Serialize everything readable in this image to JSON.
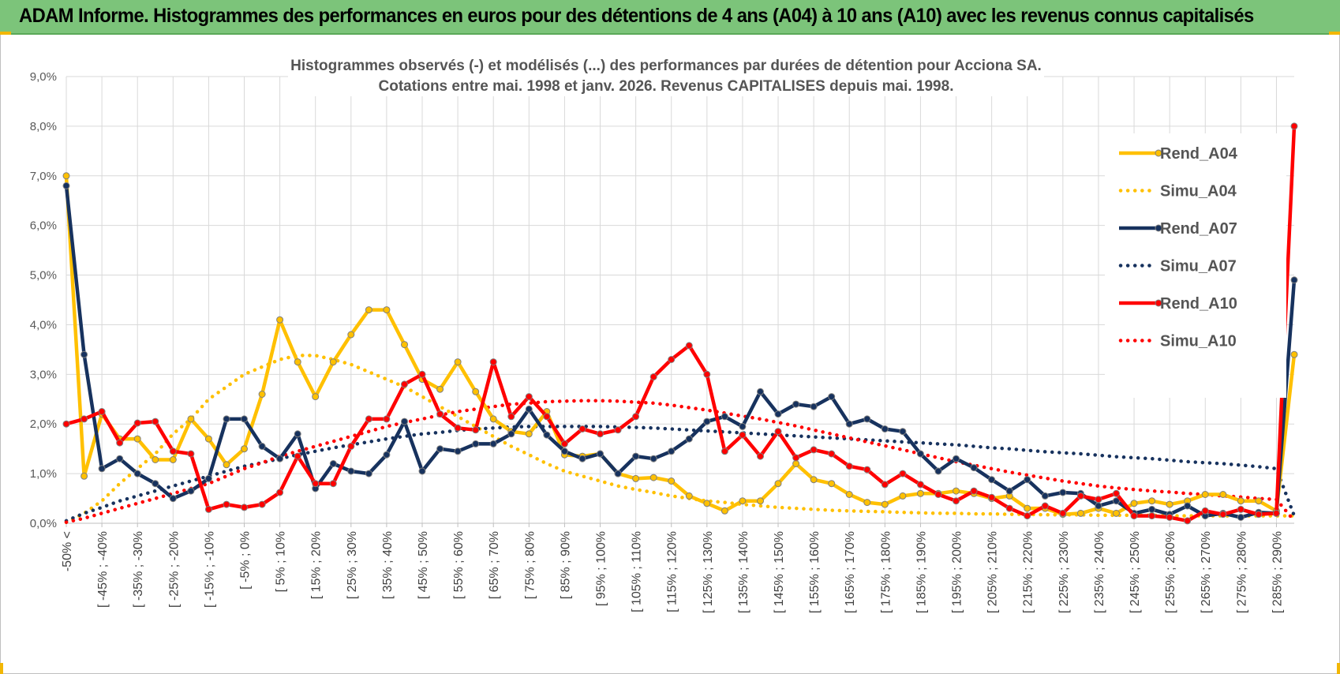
{
  "header": {
    "title": "ADAM Informe. Histogrammes des performances en euros pour des détentions de 4 ans (A04) à 10 ans (A10) avec les revenus connus capitalisés"
  },
  "colors": {
    "banner": "#7cc47a",
    "A04": "#ffc000",
    "A07": "#17325e",
    "A10": "#ff0000",
    "grid": "#d9d9d9"
  },
  "chart_data": {
    "type": "line",
    "title": "Histogrammes observés (-) et modélisés (...) des performances par durées de détention pour Acciona SA.",
    "subtitle": "Cotations entre mai. 1998 et janv. 2026. Revenus CAPITALISES depuis mai. 1998.",
    "ylim": [
      0,
      9
    ],
    "yticks": [
      "0,0%",
      "1,0%",
      "2,0%",
      "3,0%",
      "4,0%",
      "5,0%",
      "6,0%",
      "7,0%",
      "8,0%",
      "9,0%"
    ],
    "grid": true,
    "legend_position": "top-right",
    "x_labels": [
      "-50% <",
      "[ -45% ; -40%",
      "[ -35% ; -30%",
      "[ -25% ; -20%",
      "[ -15% ; -10%",
      "[ -5% ; 0%",
      "[ 5% ; 10%",
      "[ 15% ; 20%",
      "[ 25% ; 30%",
      "[ 35% ; 40%",
      "[ 45% ; 50%",
      "[ 55% ; 60%",
      "[ 65% ; 70%",
      "[ 75% ; 80%",
      "[ 85% ; 90%",
      "[ 95% ; 100%",
      "[ 105% ; 110%",
      "[ 115% ; 120%",
      "[ 125% ; 130%",
      "[ 135% ; 140%",
      "[ 145% ; 150%",
      "[ 155% ; 160%",
      "[ 165% ; 170%",
      "[ 175% ; 180%",
      "[ 185% ; 190%",
      "[ 195% ; 200%",
      "[ 205% ; 210%",
      "[ 215% ; 220%",
      "[ 225% ; 230%",
      "[ 235% ; 240%",
      "[ 245% ; 250%",
      "[ 255% ; 260%",
      "[ 265% ; 270%",
      "[ 275% ; 280%",
      "[ 285% ; 290%"
    ],
    "series": [
      {
        "name": "Rend_A04",
        "style": "solid",
        "color": "#ffc000",
        "values": [
          7.0,
          0.95,
          2.2,
          1.7,
          1.7,
          1.28,
          1.28,
          2.1,
          1.7,
          1.18,
          1.5,
          2.6,
          4.1,
          3.25,
          2.55,
          3.25,
          3.8,
          4.3,
          4.3,
          3.6,
          2.9,
          2.7,
          3.25,
          2.65,
          2.1,
          1.85,
          1.8,
          2.25,
          1.38,
          1.35,
          1.4,
          1.0,
          0.9,
          0.92,
          0.85,
          0.55,
          0.4,
          0.25,
          0.45,
          0.45,
          0.8,
          1.2,
          0.88,
          0.8,
          0.58,
          0.42,
          0.38,
          0.55,
          0.6,
          0.6,
          0.65,
          0.6,
          0.5,
          0.55,
          0.3,
          0.3,
          0.18,
          0.2,
          0.3,
          0.2,
          0.4,
          0.45,
          0.38,
          0.45,
          0.58,
          0.58,
          0.45,
          0.45,
          0.25,
          3.4
        ]
      },
      {
        "name": "Simu_A04",
        "style": "dotted",
        "color": "#ffc000",
        "values": [
          0.02,
          0.2,
          0.45,
          0.8,
          1.1,
          1.4,
          1.8,
          2.1,
          2.5,
          2.75,
          3.0,
          3.15,
          3.3,
          3.38,
          3.38,
          3.3,
          3.2,
          3.05,
          2.9,
          2.75,
          2.55,
          2.35,
          2.15,
          1.95,
          1.75,
          1.55,
          1.38,
          1.2,
          1.05,
          0.95,
          0.85,
          0.75,
          0.68,
          0.62,
          0.55,
          0.5,
          0.45,
          0.42,
          0.38,
          0.35,
          0.32,
          0.3,
          0.28,
          0.26,
          0.25,
          0.24,
          0.23,
          0.22,
          0.21,
          0.2,
          0.2,
          0.19,
          0.19,
          0.18,
          0.18,
          0.17,
          0.17,
          0.17,
          0.16,
          0.16,
          0.16,
          0.16,
          0.15,
          0.15,
          0.15,
          0.15,
          0.15,
          0.15,
          0.15,
          0.15
        ]
      },
      {
        "name": "Rend_A07",
        "style": "solid",
        "color": "#17325e",
        "values": [
          6.8,
          3.4,
          1.1,
          1.3,
          1.0,
          0.8,
          0.5,
          0.65,
          0.9,
          2.1,
          2.1,
          1.55,
          1.3,
          1.8,
          0.7,
          1.2,
          1.05,
          1.0,
          1.38,
          2.05,
          1.05,
          1.5,
          1.45,
          1.6,
          1.6,
          1.8,
          2.3,
          1.78,
          1.45,
          1.3,
          1.4,
          1.0,
          1.35,
          1.3,
          1.45,
          1.7,
          2.05,
          2.15,
          1.95,
          2.65,
          2.2,
          2.4,
          2.35,
          2.55,
          2.0,
          2.1,
          1.9,
          1.85,
          1.4,
          1.05,
          1.3,
          1.12,
          0.88,
          0.65,
          0.88,
          0.55,
          0.62,
          0.6,
          0.35,
          0.45,
          0.2,
          0.28,
          0.18,
          0.35,
          0.15,
          0.2,
          0.12,
          0.22,
          0.2,
          4.9
        ]
      },
      {
        "name": "Simu_A07",
        "style": "dotted",
        "color": "#17325e",
        "values": [
          0.05,
          0.2,
          0.32,
          0.45,
          0.55,
          0.65,
          0.75,
          0.85,
          0.95,
          1.05,
          1.15,
          1.22,
          1.3,
          1.38,
          1.45,
          1.52,
          1.58,
          1.64,
          1.7,
          1.75,
          1.8,
          1.83,
          1.87,
          1.9,
          1.92,
          1.94,
          1.95,
          1.95,
          1.95,
          1.95,
          1.95,
          1.94,
          1.93,
          1.92,
          1.9,
          1.88,
          1.86,
          1.84,
          1.82,
          1.8,
          1.78,
          1.76,
          1.74,
          1.72,
          1.7,
          1.68,
          1.66,
          1.64,
          1.62,
          1.6,
          1.58,
          1.55,
          1.52,
          1.5,
          1.47,
          1.44,
          1.42,
          1.4,
          1.37,
          1.34,
          1.32,
          1.3,
          1.27,
          1.24,
          1.22,
          1.2,
          1.17,
          1.14,
          1.1,
          0.15
        ]
      },
      {
        "name": "Rend_A10",
        "style": "solid",
        "color": "#ff0000",
        "values": [
          2.0,
          2.1,
          2.25,
          1.62,
          2.02,
          2.05,
          1.45,
          1.4,
          0.28,
          0.38,
          0.32,
          0.38,
          0.62,
          1.35,
          0.8,
          0.8,
          1.55,
          2.1,
          2.1,
          2.8,
          3.0,
          2.2,
          1.92,
          1.88,
          3.25,
          2.15,
          2.55,
          2.15,
          1.6,
          1.9,
          1.8,
          1.88,
          2.15,
          2.95,
          3.3,
          3.58,
          3.0,
          1.45,
          1.78,
          1.35,
          1.85,
          1.32,
          1.48,
          1.4,
          1.15,
          1.08,
          0.78,
          1.0,
          0.78,
          0.58,
          0.45,
          0.65,
          0.52,
          0.3,
          0.15,
          0.35,
          0.2,
          0.55,
          0.48,
          0.6,
          0.15,
          0.15,
          0.12,
          0.05,
          0.25,
          0.18,
          0.28,
          0.18,
          0.2,
          8.0
        ]
      },
      {
        "name": "Simu_A10",
        "style": "dotted",
        "color": "#ff0000",
        "values": [
          0.02,
          0.1,
          0.2,
          0.3,
          0.4,
          0.5,
          0.6,
          0.7,
          0.8,
          0.95,
          1.1,
          1.22,
          1.35,
          1.45,
          1.55,
          1.65,
          1.75,
          1.85,
          1.95,
          2.03,
          2.1,
          2.18,
          2.25,
          2.3,
          2.35,
          2.4,
          2.42,
          2.45,
          2.46,
          2.47,
          2.47,
          2.46,
          2.44,
          2.42,
          2.38,
          2.33,
          2.28,
          2.22,
          2.16,
          2.1,
          2.03,
          1.96,
          1.88,
          1.8,
          1.72,
          1.64,
          1.56,
          1.48,
          1.4,
          1.32,
          1.24,
          1.17,
          1.1,
          1.03,
          0.97,
          0.91,
          0.85,
          0.8,
          0.75,
          0.71,
          0.68,
          0.65,
          0.63,
          0.6,
          0.58,
          0.55,
          0.53,
          0.5,
          0.48,
          0.05
        ]
      }
    ]
  }
}
